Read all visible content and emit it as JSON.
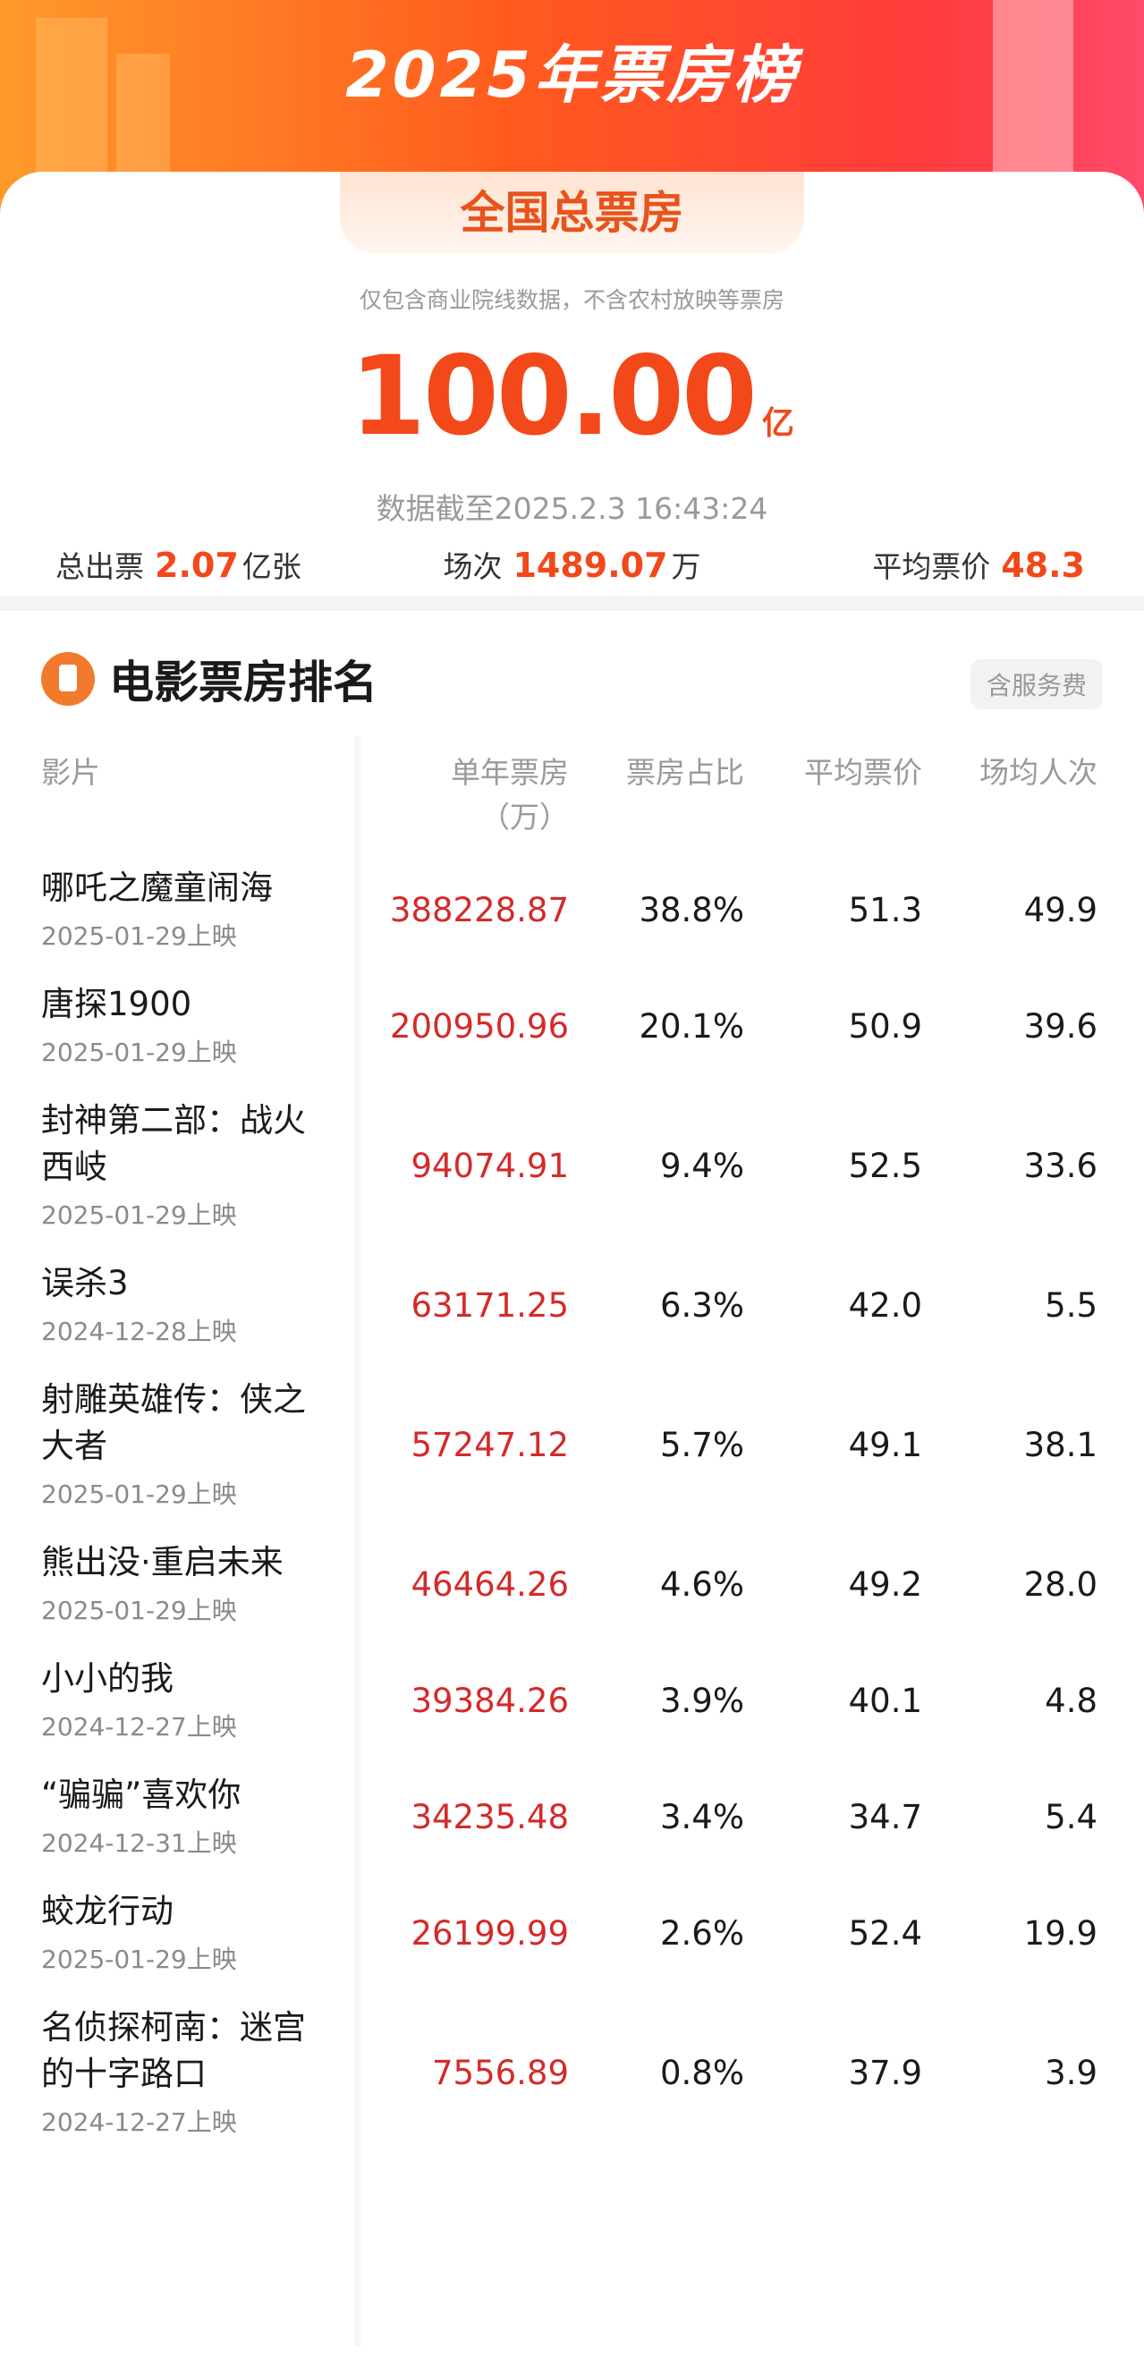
{
  "header": {
    "title": "2025年票房榜"
  },
  "summary": {
    "tab": "全国总票房",
    "note": "仅包含商业院线数据，不含农村放映等票房",
    "total": "100.00",
    "total_unit": "亿",
    "updated": "数据截至2025.2.3 16:43:24",
    "stats": [
      {
        "label": "总出票",
        "value": "2.07",
        "unit": "亿张"
      },
      {
        "label": "场次",
        "value": "1489.07",
        "unit": "万"
      },
      {
        "label": "平均票价",
        "value": "48.3"
      }
    ]
  },
  "ranking": {
    "title": "电影票房排名",
    "badge": "含服务费",
    "columns": [
      "影片",
      "单年票房",
      "票房占比",
      "平均票价",
      "场均人次"
    ],
    "box_office_unit": "（万）",
    "rows": [
      {
        "title": "哪吒之魔童闹海",
        "release": "2025-01-29上映",
        "box_office": "388228.87",
        "share": "38.8%",
        "avg_price": "51.3",
        "avg_attendance": "49.9"
      },
      {
        "title": "唐探1900",
        "release": "2025-01-29上映",
        "box_office": "200950.96",
        "share": "20.1%",
        "avg_price": "50.9",
        "avg_attendance": "39.6"
      },
      {
        "title": "封神第二部：战火西岐",
        "release": "2025-01-29上映",
        "box_office": "94074.91",
        "share": "9.4%",
        "avg_price": "52.5",
        "avg_attendance": "33.6"
      },
      {
        "title": "误杀3",
        "release": "2024-12-28上映",
        "box_office": "63171.25",
        "share": "6.3%",
        "avg_price": "42.0",
        "avg_attendance": "5.5"
      },
      {
        "title": "射雕英雄传：侠之大者",
        "release": "2025-01-29上映",
        "box_office": "57247.12",
        "share": "5.7%",
        "avg_price": "49.1",
        "avg_attendance": "38.1"
      },
      {
        "title": "熊出没·重启未来",
        "release": "2025-01-29上映",
        "box_office": "46464.26",
        "share": "4.6%",
        "avg_price": "49.2",
        "avg_attendance": "28.0"
      },
      {
        "title": "小小的我",
        "release": "2024-12-27上映",
        "box_office": "39384.26",
        "share": "3.9%",
        "avg_price": "40.1",
        "avg_attendance": "4.8"
      },
      {
        "title": "“骗骗”喜欢你",
        "release": "2024-12-31上映",
        "box_office": "34235.48",
        "share": "3.4%",
        "avg_price": "34.7",
        "avg_attendance": "5.4"
      },
      {
        "title": "蛟龙行动",
        "release": "2025-01-29上映",
        "box_office": "26199.99",
        "share": "2.6%",
        "avg_price": "52.4",
        "avg_attendance": "19.9"
      },
      {
        "title": "名侦探柯南：迷宫的十字路口",
        "release": "2024-12-27上映",
        "box_office": "7556.89",
        "share": "0.8%",
        "avg_price": "37.9",
        "avg_attendance": "3.9"
      }
    ]
  }
}
